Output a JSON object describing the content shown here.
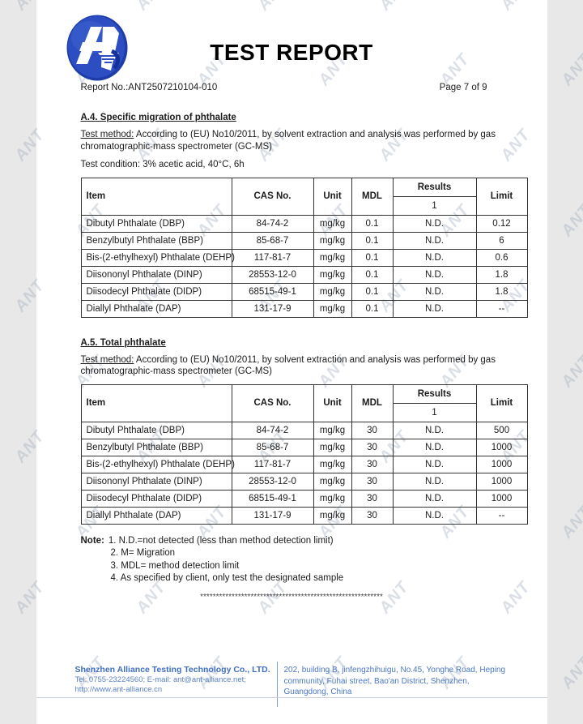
{
  "header": {
    "title": "TEST REPORT",
    "report_no": "Report No.:ANT2507210104-010",
    "page_label": "Page 7 of 9"
  },
  "watermark": {
    "text": "ANT"
  },
  "logo": {
    "name": "ant-alliance-logo",
    "primary_color": "#2c4ec2"
  },
  "a4": {
    "heading": "A.4. Specific migration of phthalate",
    "test_method_label": "Test method:",
    "test_method_rest": " According to (EU) No10/2011, by solvent extraction and analysis was performed by gas chromatographic-mass spectrometer (GC-MS)",
    "test_condition": "Test condition: 3% acetic acid, 40°C, 6h",
    "table": {
      "col_item": "Item",
      "col_cas": "CAS No.",
      "col_unit": "Unit",
      "col_mdl": "MDL",
      "col_results": "Results",
      "col_results_sub": "1",
      "col_limit": "Limit",
      "rows": [
        {
          "item": "Dibutyl Phthalate (DBP)",
          "cas": "84-74-2",
          "unit": "mg/kg",
          "mdl": "0.1",
          "result": "N.D.",
          "limit": "0.12"
        },
        {
          "item": "Benzylbutyl Phthalate (BBP)",
          "cas": "85-68-7",
          "unit": "mg/kg",
          "mdl": "0.1",
          "result": "N.D.",
          "limit": "6"
        },
        {
          "item": "Bis-(2-ethylhexyl) Phthalate (DEHP)",
          "cas": "117-81-7",
          "unit": "mg/kg",
          "mdl": "0.1",
          "result": "N.D.",
          "limit": "0.6"
        },
        {
          "item": "Diisononyl Phthalate (DINP)",
          "cas": "28553-12-0",
          "unit": "mg/kg",
          "mdl": "0.1",
          "result": "N.D.",
          "limit": "1.8"
        },
        {
          "item": "Diisodecyl Phthalate (DIDP)",
          "cas": "68515-49-1",
          "unit": "mg/kg",
          "mdl": "0.1",
          "result": "N.D.",
          "limit": "1.8"
        },
        {
          "item": "Diallyl Phthalate (DAP)",
          "cas": "131-17-9",
          "unit": "mg/kg",
          "mdl": "0.1",
          "result": "N.D.",
          "limit": "--"
        }
      ]
    }
  },
  "a5": {
    "heading": "A.5. Total phthalate",
    "test_method_label": "Test method:",
    "test_method_rest": " According to (EU) No10/2011, by solvent extraction and analysis was performed by gas chromatographic-mass spectrometer (GC-MS)",
    "table": {
      "col_item": "Item",
      "col_cas": "CAS No.",
      "col_unit": "Unit",
      "col_mdl": "MDL",
      "col_results": "Results",
      "col_results_sub": "1",
      "col_limit": "Limit",
      "rows": [
        {
          "item": "Dibutyl Phthalate (DBP)",
          "cas": "84-74-2",
          "unit": "mg/kg",
          "mdl": "30",
          "result": "N.D.",
          "limit": "500"
        },
        {
          "item": "Benzylbutyl Phthalate (BBP)",
          "cas": "85-68-7",
          "unit": "mg/kg",
          "mdl": "30",
          "result": "N.D.",
          "limit": "1000"
        },
        {
          "item": "Bis-(2-ethylhexyl) Phthalate (DEHP)",
          "cas": "117-81-7",
          "unit": "mg/kg",
          "mdl": "30",
          "result": "N.D.",
          "limit": "1000"
        },
        {
          "item": "Diisononyl Phthalate (DINP)",
          "cas": "28553-12-0",
          "unit": "mg/kg",
          "mdl": "30",
          "result": "N.D.",
          "limit": "1000"
        },
        {
          "item": "Diisodecyl Phthalate (DIDP)",
          "cas": "68515-49-1",
          "unit": "mg/kg",
          "mdl": "30",
          "result": "N.D.",
          "limit": "1000"
        },
        {
          "item": "Diallyl Phthalate (DAP)",
          "cas": "131-17-9",
          "unit": "mg/kg",
          "mdl": "30",
          "result": "N.D.",
          "limit": "--"
        }
      ]
    }
  },
  "notes": {
    "label": "Note:",
    "items": [
      "1. N.D.=not detected (less than method detection limit)",
      "2. M= Migration",
      "3. MDL= method detection limit",
      "4. As specified by client, only test the designated sample"
    ]
  },
  "separator": "**********************************************************",
  "footer": {
    "company": "Shenzhen Alliance Testing Technology Co., LTD.",
    "tel_email": "Tel: 0755-23224560; E-mail: ant@ant-alliance.net;",
    "website": "http://www.ant-alliance.cn",
    "address": "202, building B, jinfengzhihuigu, No.45, Yonghe Road, Heping community, Fuhai street, Bao'an District, Shenzhen, Guangdong, China",
    "accent_color": "#4a78c4"
  }
}
